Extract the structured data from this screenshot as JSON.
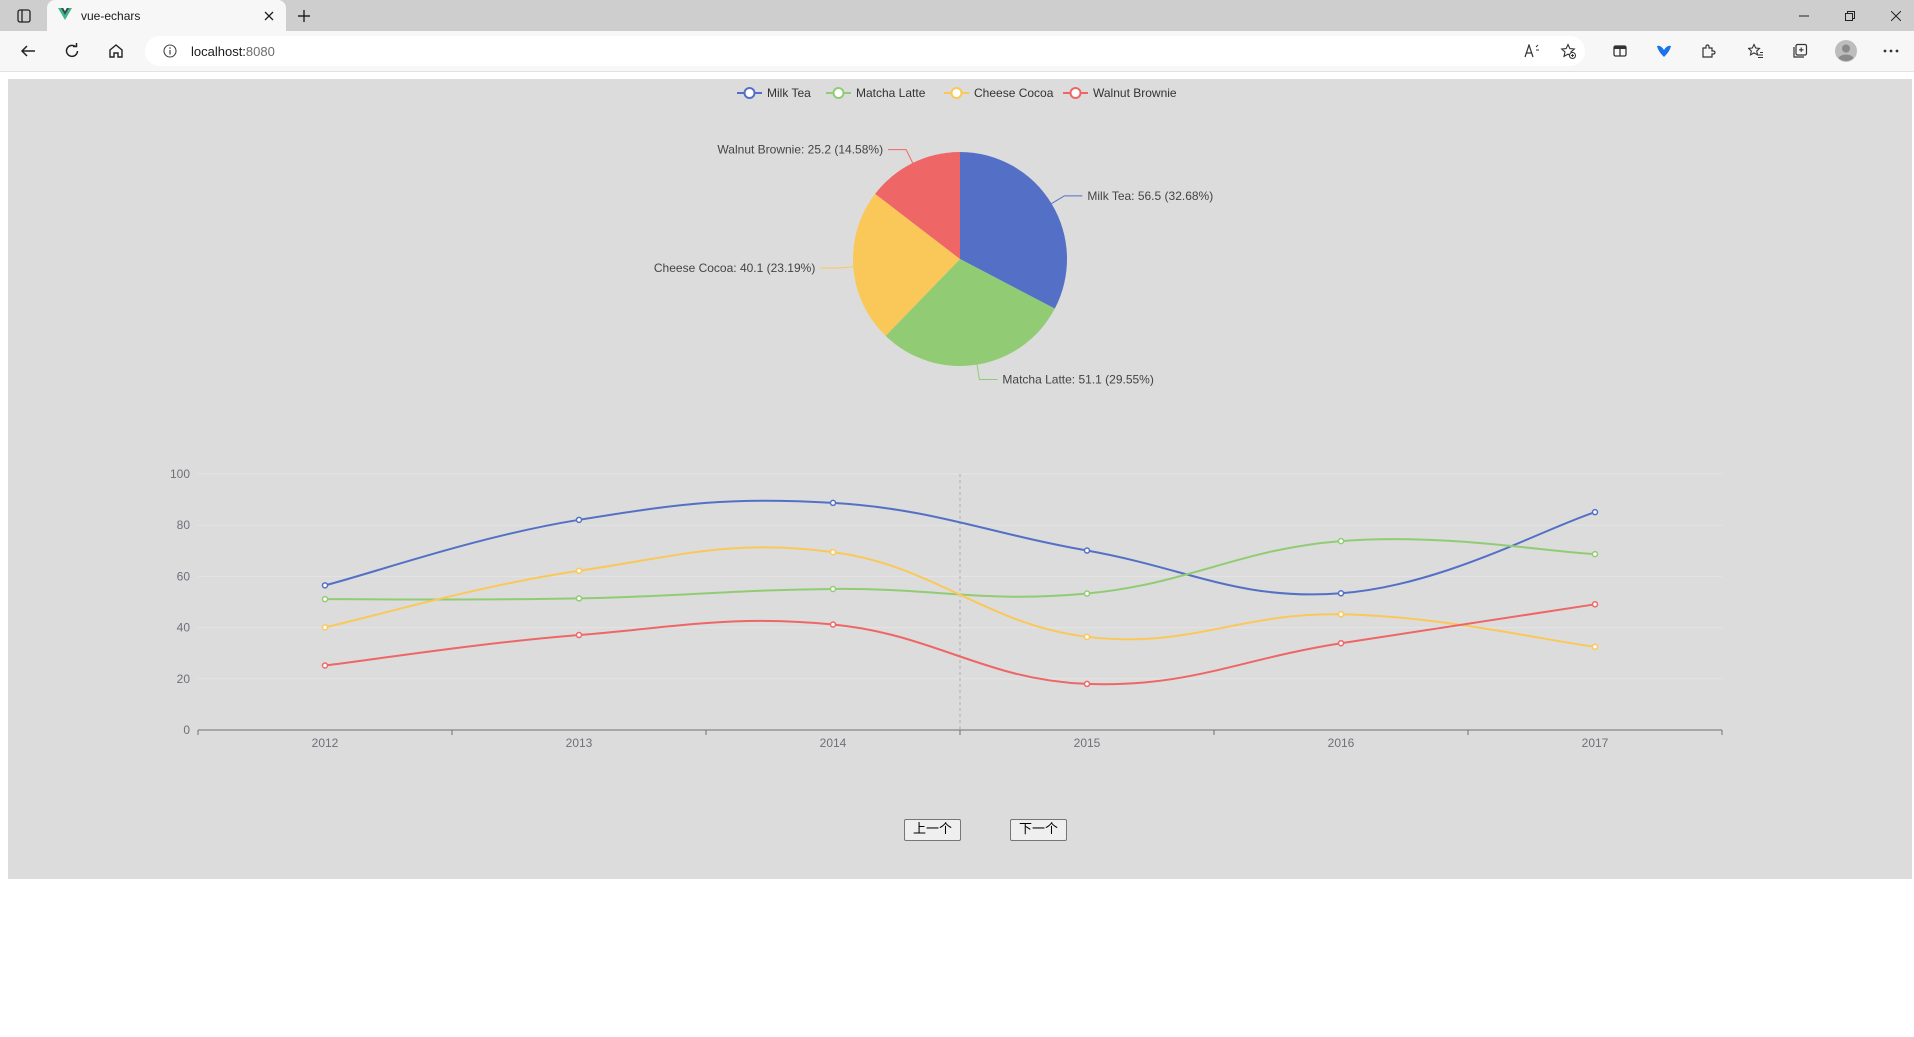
{
  "browser": {
    "tab_title": "vue-echars",
    "address_host": "localhost:",
    "address_port": "8080"
  },
  "colors": {
    "milk_tea": "#5470c6",
    "matcha_latte": "#91cc75",
    "cheese_cocoa": "#fac858",
    "walnut_brownie": "#ee6666"
  },
  "icons": [
    "tab-actions-icon",
    "vue-logo-icon",
    "close-icon",
    "new-tab-icon",
    "minimize-icon",
    "restore-icon",
    "close-window-icon",
    "back-icon",
    "refresh-icon",
    "home-icon",
    "info-icon",
    "read-aloud-icon",
    "add-favorite-icon",
    "split-screen-icon",
    "extension-icon",
    "puzzle-icon",
    "favorites-icon",
    "collections-icon",
    "profile-icon",
    "more-icon"
  ],
  "chart_data": [
    {
      "type": "pie",
      "legend": [
        "Milk Tea",
        "Matcha Latte",
        "Cheese Cocoa",
        "Walnut Brownie"
      ],
      "legend_position": "top-center",
      "slices": [
        {
          "name": "Milk Tea",
          "value": 56.5,
          "percent": 32.68,
          "label": "Milk Tea: 56.5 (32.68%)"
        },
        {
          "name": "Matcha Latte",
          "value": 51.1,
          "percent": 29.55,
          "label": "Matcha Latte: 51.1 (29.55%)"
        },
        {
          "name": "Cheese Cocoa",
          "value": 40.1,
          "percent": 23.19,
          "label": "Cheese Cocoa: 40.1 (23.19%)"
        },
        {
          "name": "Walnut Brownie",
          "value": 25.2,
          "percent": 14.58,
          "label": "Walnut Brownie: 25.2 (14.58%)"
        }
      ]
    },
    {
      "type": "line",
      "smooth": true,
      "categories": [
        "2012",
        "2013",
        "2014",
        "2015",
        "2016",
        "2017"
      ],
      "ylim": [
        0,
        100
      ],
      "yticks": [
        "0",
        "20",
        "40",
        "60",
        "80",
        "100"
      ],
      "grid": true,
      "axis_pointer_between": [
        "2014",
        "2015"
      ],
      "series": [
        {
          "name": "Milk Tea",
          "values": [
            56.5,
            82.1,
            88.7,
            70.1,
            53.4,
            85.1
          ]
        },
        {
          "name": "Matcha Latte",
          "values": [
            51.1,
            51.4,
            55.1,
            53.3,
            73.8,
            68.7
          ]
        },
        {
          "name": "Cheese Cocoa",
          "values": [
            40.1,
            62.2,
            69.5,
            36.4,
            45.2,
            32.5
          ]
        },
        {
          "name": "Walnut Brownie",
          "values": [
            25.2,
            37.1,
            41.2,
            18.0,
            33.9,
            49.1
          ]
        }
      ]
    }
  ],
  "buttons": {
    "prev": "上一个",
    "next": "下一个"
  }
}
